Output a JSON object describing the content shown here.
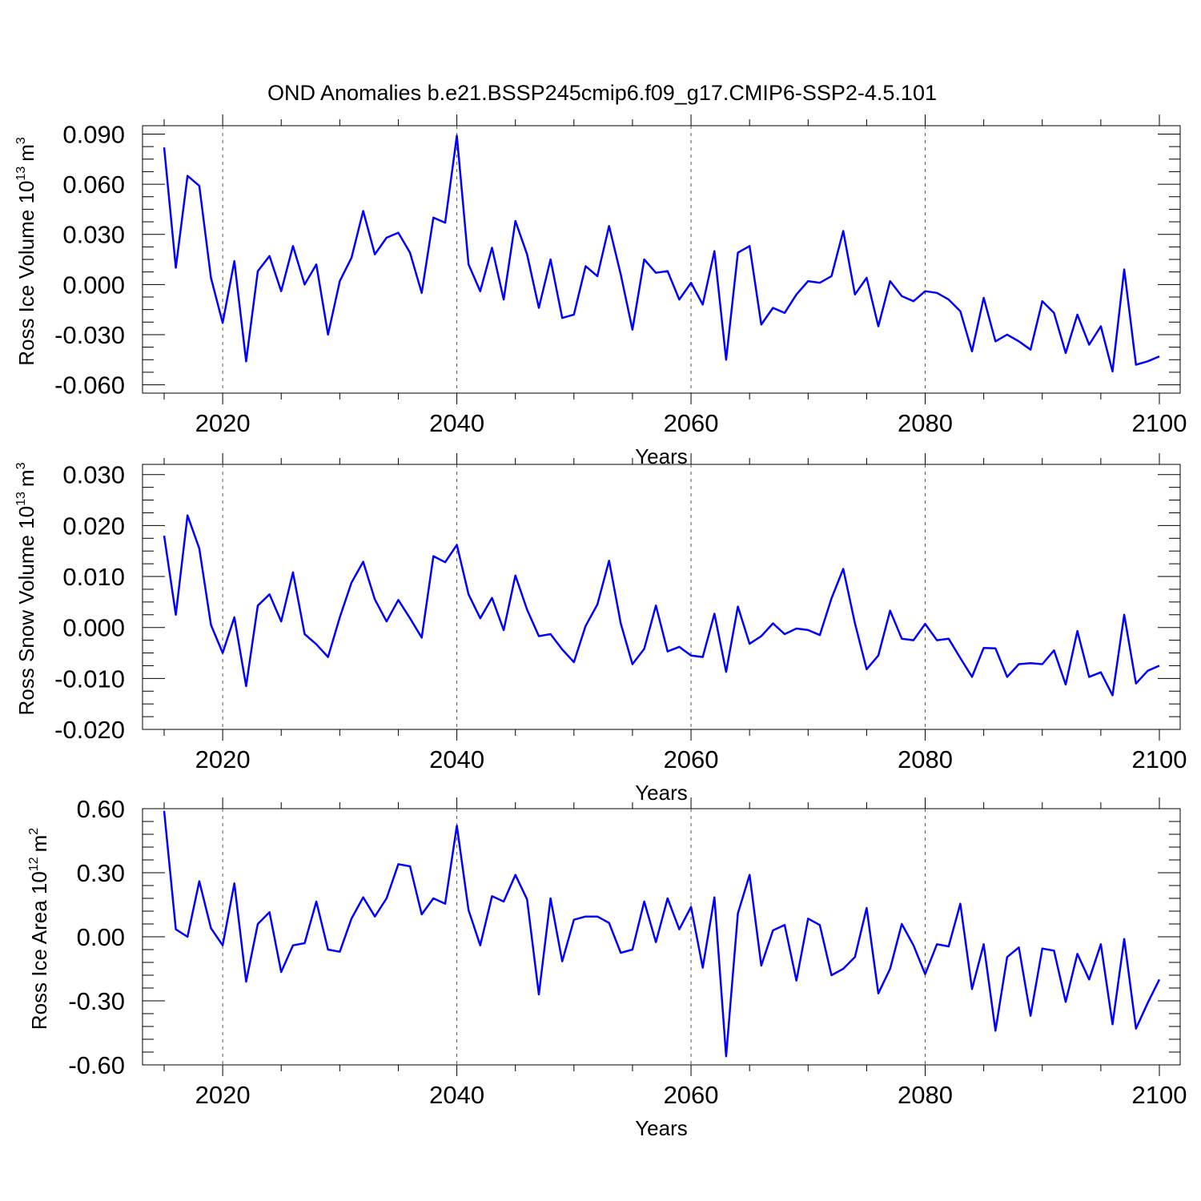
{
  "title": "OND Anomalies b.e21.BSSP245cmip6.f09_g17.CMIP6-SSP2-4.5.101",
  "line_color": "#0000ff",
  "chart_data": [
    {
      "type": "line",
      "title": "OND Anomalies b.e21.BSSP245cmip6.f09_g17.CMIP6-SSP2-4.5.101",
      "ylabel": "Ross Ice Volume 10",
      "ylabel_exp": "13",
      "ylabel_unit": "m",
      "ylabel_unit_exp": "3",
      "xlabel": "Years",
      "xlim": [
        2015,
        2100
      ],
      "ylim": [
        -0.065,
        0.095
      ],
      "yticks": [
        -0.06,
        -0.03,
        0.0,
        0.03,
        0.06,
        0.09
      ],
      "yticklabels": [
        "-0.060",
        "-0.030",
        "0.000",
        "0.030",
        "0.060",
        "0.090"
      ],
      "xticks": [
        2020,
        2040,
        2060,
        2080,
        2100
      ],
      "xticklabels": [
        "2020",
        "2040",
        "2060",
        "2080",
        "2100"
      ],
      "x_start": 2015,
      "series": [
        {
          "name": "Ross Ice Volume",
          "values": [
            0.082,
            0.01,
            0.065,
            0.059,
            0.004,
            -0.023,
            0.014,
            -0.046,
            0.008,
            0.017,
            -0.004,
            0.023,
            0.0,
            0.012,
            -0.03,
            0.002,
            0.016,
            0.044,
            0.018,
            0.028,
            0.031,
            0.019,
            -0.005,
            0.04,
            0.037,
            0.089,
            0.012,
            -0.004,
            0.022,
            -0.009,
            0.038,
            0.018,
            -0.014,
            0.015,
            -0.02,
            -0.018,
            0.011,
            0.005,
            0.035,
            0.006,
            -0.027,
            0.015,
            0.007,
            0.008,
            -0.009,
            0.001,
            -0.012,
            0.02,
            -0.045,
            0.019,
            0.023,
            -0.024,
            -0.014,
            -0.017,
            -0.006,
            0.002,
            0.001,
            0.005,
            0.032,
            -0.006,
            0.004,
            -0.025,
            0.002,
            -0.007,
            -0.01,
            -0.004,
            -0.005,
            -0.009,
            -0.016,
            -0.04,
            -0.008,
            -0.034,
            -0.03,
            -0.034,
            -0.039,
            -0.01,
            -0.017,
            -0.041,
            -0.018,
            -0.036,
            -0.025,
            -0.052,
            0.009,
            -0.048,
            -0.046,
            -0.043
          ]
        }
      ]
    },
    {
      "type": "line",
      "ylabel": "Ross Snow Volume 10",
      "ylabel_exp": "13",
      "ylabel_unit": "m",
      "ylabel_unit_exp": "3",
      "xlabel": "Years",
      "xlim": [
        2015,
        2100
      ],
      "ylim": [
        -0.02,
        0.032
      ],
      "yticks": [
        -0.02,
        -0.01,
        0.0,
        0.01,
        0.02,
        0.03
      ],
      "yticklabels": [
        "-0.020",
        "-0.010",
        "0.000",
        "0.010",
        "0.020",
        "0.030"
      ],
      "xticks": [
        2020,
        2040,
        2060,
        2080,
        2100
      ],
      "xticklabels": [
        "2020",
        "2040",
        "2060",
        "2080",
        "2100"
      ],
      "x_start": 2015,
      "series": [
        {
          "name": "Ross Snow Volume",
          "values": [
            0.018,
            0.0025,
            0.022,
            0.0155,
            0.0005,
            -0.005,
            0.002,
            -0.0115,
            0.0043,
            0.0065,
            0.0012,
            0.0108,
            -0.0013,
            -0.0033,
            -0.0058,
            0.002,
            0.0088,
            0.0129,
            0.0055,
            0.0012,
            0.0054,
            0.0018,
            -0.002,
            0.014,
            0.0128,
            0.0162,
            0.0065,
            0.0018,
            0.0058,
            -0.0005,
            0.0102,
            0.0035,
            -0.0017,
            -0.0013,
            -0.0043,
            -0.0068,
            0.0003,
            0.0045,
            0.0131,
            0.0008,
            -0.0072,
            -0.0042,
            0.0043,
            -0.0047,
            -0.0038,
            -0.0055,
            -0.0058,
            0.0027,
            -0.0087,
            0.0041,
            -0.0032,
            -0.0017,
            0.0008,
            -0.0013,
            -0.0002,
            -0.0005,
            -0.0015,
            0.0057,
            0.0115,
            0.0008,
            -0.0082,
            -0.0055,
            0.0033,
            -0.0022,
            -0.0025,
            0.0007,
            -0.0025,
            -0.0022,
            -0.006,
            -0.0097,
            -0.004,
            -0.0041,
            -0.0097,
            -0.0072,
            -0.007,
            -0.0072,
            -0.0045,
            -0.0112,
            -0.0007,
            -0.0097,
            -0.0088,
            -0.0133,
            0.0025,
            -0.011,
            -0.0085,
            -0.0075
          ]
        }
      ]
    },
    {
      "type": "line",
      "ylabel": "Ross Ice Area 10",
      "ylabel_exp": "12",
      "ylabel_unit": "m",
      "ylabel_unit_exp": "2",
      "xlabel": "Years",
      "xlim": [
        2015,
        2100
      ],
      "ylim": [
        -0.6,
        0.6
      ],
      "yticks": [
        -0.6,
        -0.3,
        0.0,
        0.3,
        0.6
      ],
      "yticklabels": [
        "-0.60",
        "-0.30",
        "0.00",
        "0.30",
        "0.60"
      ],
      "xticks": [
        2020,
        2040,
        2060,
        2080,
        2100
      ],
      "xticklabels": [
        "2020",
        "2040",
        "2060",
        "2080",
        "2100"
      ],
      "x_start": 2015,
      "series": [
        {
          "name": "Ross Ice Area",
          "values": [
            0.59,
            0.035,
            0.0,
            0.26,
            0.04,
            -0.04,
            0.25,
            -0.21,
            0.06,
            0.115,
            -0.165,
            -0.04,
            -0.03,
            0.165,
            -0.06,
            -0.07,
            0.085,
            0.185,
            0.095,
            0.18,
            0.34,
            0.33,
            0.105,
            0.18,
            0.155,
            0.52,
            0.125,
            -0.04,
            0.19,
            0.165,
            0.29,
            0.175,
            -0.27,
            0.18,
            -0.115,
            0.08,
            0.095,
            0.095,
            0.065,
            -0.075,
            -0.06,
            0.165,
            -0.025,
            0.18,
            0.035,
            0.14,
            -0.145,
            0.185,
            -0.56,
            0.11,
            0.29,
            -0.135,
            0.03,
            0.055,
            -0.205,
            0.085,
            0.055,
            -0.18,
            -0.15,
            -0.095,
            0.135,
            -0.265,
            -0.15,
            0.06,
            -0.04,
            -0.175,
            -0.035,
            -0.045,
            0.155,
            -0.245,
            -0.035,
            -0.44,
            -0.095,
            -0.05,
            -0.37,
            -0.055,
            -0.065,
            -0.305,
            -0.08,
            -0.2,
            -0.035,
            -0.41,
            -0.01,
            -0.43,
            -0.31,
            -0.2
          ]
        }
      ]
    }
  ]
}
